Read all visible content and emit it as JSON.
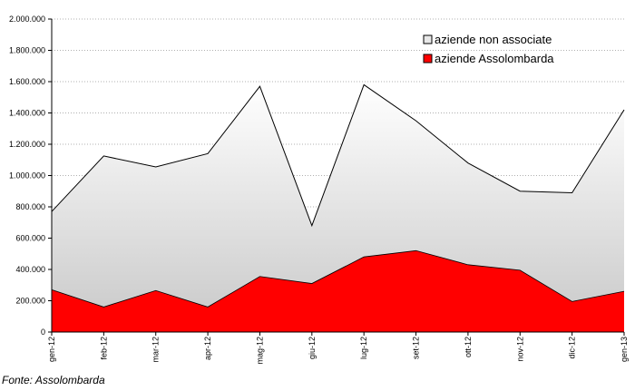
{
  "chart_data": {
    "type": "area",
    "stacked": true,
    "categories": [
      "gen-12",
      "feb-12",
      "mar-12",
      "apr-12",
      "mag-12",
      "giu-12",
      "lug-12",
      "set-12",
      "ott-12",
      "nov-12",
      "dic-12",
      "gen-13"
    ],
    "series": [
      {
        "name": "aziende Assolombarda",
        "color": "#ff0000",
        "values": [
          270000,
          160000,
          265000,
          160000,
          355000,
          310000,
          480000,
          520000,
          430000,
          395000,
          195000,
          260000
        ]
      },
      {
        "name": "aziende non associate",
        "color": "#d9d9d9",
        "values": [
          500000,
          965000,
          790000,
          980000,
          1215000,
          370000,
          1100000,
          830000,
          650000,
          505000,
          695000,
          1160000
        ]
      }
    ],
    "totals": [
      770000,
      1125000,
      1055000,
      1140000,
      1570000,
      680000,
      1580000,
      1350000,
      1080000,
      900000,
      890000,
      1420000
    ],
    "ylim": [
      0,
      2000000
    ],
    "yticks": [
      "0",
      "200.000",
      "400.000",
      "600.000",
      "800.000",
      "1.000.000",
      "1.200.000",
      "1.400.000",
      "1.600.000",
      "1.800.000",
      "2.000.000"
    ],
    "grid": true,
    "legend_position": "top-right",
    "legend": [
      "aziende non associate",
      "aziende Assolombarda"
    ]
  },
  "source_note": "Fonte: Assolombarda"
}
